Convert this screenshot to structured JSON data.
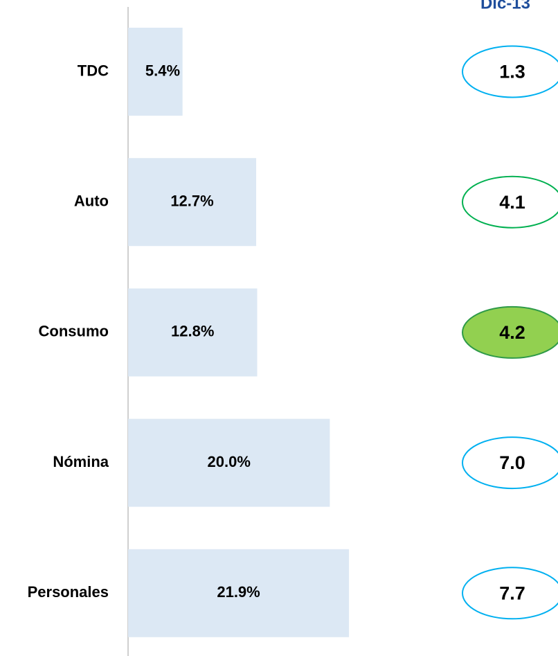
{
  "chart_data": {
    "type": "bar",
    "orientation": "horizontal",
    "categories": [
      "TDC",
      "Auto",
      "Consumo",
      "Nómina",
      "Personales"
    ],
    "values": [
      5.4,
      12.7,
      12.8,
      20.0,
      21.9
    ],
    "value_labels": [
      "5.4%",
      "12.7%",
      "12.8%",
      "20.0%",
      "21.9%"
    ],
    "color": "#dce8f4",
    "indicator": {
      "title": "Dic-13",
      "values": [
        1.3,
        4.1,
        4.2,
        7.0,
        7.7
      ],
      "value_labels": [
        "1.3",
        "4.1",
        "4.2",
        "7.0",
        "7.7"
      ],
      "stroke_colors": [
        "#00b0f0",
        "#00b050",
        "#2e9a48",
        "#00b0f0",
        "#00b0f0"
      ],
      "fill_colors": [
        "#ffffff",
        "#ffffff",
        "#92d050",
        "#ffffff",
        "#ffffff"
      ]
    }
  }
}
